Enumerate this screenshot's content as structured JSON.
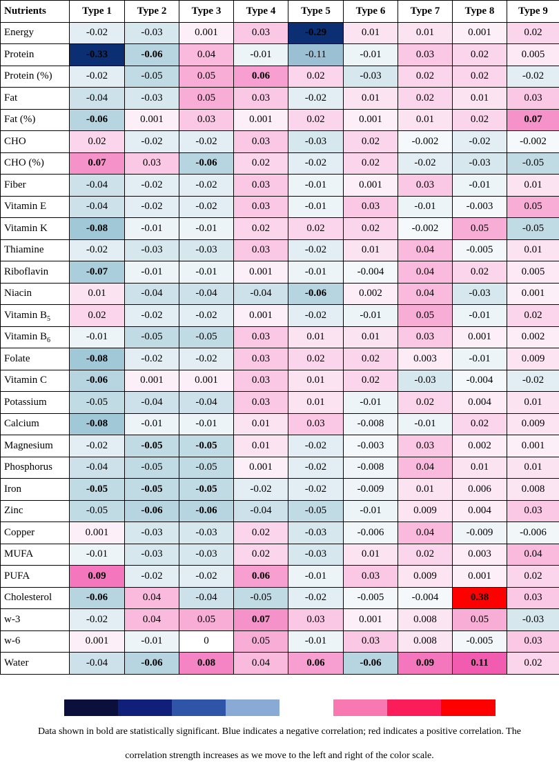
{
  "chart_data": {
    "type": "heatmap",
    "corner_label": "Nutrients",
    "columns": [
      "Type 1",
      "Type 2",
      "Type 3",
      "Type 4",
      "Type 5",
      "Type 6",
      "Type 7",
      "Type 8",
      "Type 9"
    ],
    "rows": [
      {
        "label": "Energy",
        "base": "",
        "sub": "",
        "values": [
          "-0.02",
          "-0.03",
          "0.001",
          "0.03",
          "-0.29",
          "0.01",
          "0.01",
          "0.001",
          "0.02"
        ],
        "bold": [
          0,
          0,
          0,
          0,
          1,
          0,
          0,
          0,
          0
        ]
      },
      {
        "label": "Protein",
        "base": "",
        "sub": "",
        "values": [
          "-0.33",
          "-0.06",
          "0.04",
          "-0.01",
          "-0.11",
          "-0.01",
          "0.03",
          "0.02",
          "0.005"
        ],
        "bold": [
          1,
          1,
          0,
          0,
          0,
          0,
          0,
          0,
          0
        ]
      },
      {
        "label": "Protein (%)",
        "base": "",
        "sub": "",
        "values": [
          "-0.02",
          "-0.05",
          "0.05",
          "0.06",
          "0.02",
          "-0.03",
          "0.02",
          "0.02",
          "-0.02"
        ],
        "bold": [
          0,
          0,
          0,
          1,
          0,
          0,
          0,
          0,
          0
        ]
      },
      {
        "label": "Fat",
        "base": "",
        "sub": "",
        "values": [
          "-0.04",
          "-0.03",
          "0.05",
          "0.03",
          "-0.02",
          "0.01",
          "0.02",
          "0.01",
          "0.03"
        ],
        "bold": [
          0,
          0,
          0,
          0,
          0,
          0,
          0,
          0,
          0
        ]
      },
      {
        "label": "Fat (%)",
        "base": "",
        "sub": "",
        "values": [
          "-0.06",
          "0.001",
          "0.03",
          "0.001",
          "0.02",
          "0.001",
          "0.01",
          "0.02",
          "0.07"
        ],
        "bold": [
          1,
          0,
          0,
          0,
          0,
          0,
          0,
          0,
          1
        ]
      },
      {
        "label": "CHO",
        "base": "",
        "sub": "",
        "values": [
          "0.02",
          "-0.02",
          "-0.02",
          "0.03",
          "-0.03",
          "0.02",
          "-0.002",
          "-0.02",
          "-0.002"
        ],
        "bold": [
          0,
          0,
          0,
          0,
          0,
          0,
          0,
          0,
          0
        ]
      },
      {
        "label": "CHO (%)",
        "base": "",
        "sub": "",
        "values": [
          "0.07",
          "0.03",
          "-0.06",
          "0.02",
          "-0.02",
          "0.02",
          "-0.02",
          "-0.03",
          "-0.05"
        ],
        "bold": [
          1,
          0,
          1,
          0,
          0,
          0,
          0,
          0,
          0
        ]
      },
      {
        "label": "Fiber",
        "base": "",
        "sub": "",
        "values": [
          "-0.04",
          "-0.02",
          "-0.02",
          "0.03",
          "-0.01",
          "0.001",
          "0.03",
          "-0.01",
          "0.01"
        ],
        "bold": [
          0,
          0,
          0,
          0,
          0,
          0,
          0,
          0,
          0
        ]
      },
      {
        "label": "Vitamin E",
        "base": "",
        "sub": "",
        "values": [
          "-0.04",
          "-0.02",
          "-0.02",
          "0.03",
          "-0.01",
          "0.03",
          "-0.01",
          "-0.003",
          "0.05"
        ],
        "bold": [
          0,
          0,
          0,
          0,
          0,
          0,
          0,
          0,
          0
        ]
      },
      {
        "label": "Vitamin K",
        "base": "",
        "sub": "",
        "values": [
          "-0.08",
          "-0.01",
          "-0.01",
          "0.02",
          "0.02",
          "0.02",
          "-0.002",
          "0.05",
          "-0.05"
        ],
        "bold": [
          1,
          0,
          0,
          0,
          0,
          0,
          0,
          0,
          0
        ]
      },
      {
        "label": "Thiamine",
        "base": "",
        "sub": "",
        "values": [
          "-0.02",
          "-0.03",
          "-0.03",
          "0.03",
          "-0.02",
          "0.01",
          "0.04",
          "-0.005",
          "0.01"
        ],
        "bold": [
          0,
          0,
          0,
          0,
          0,
          0,
          0,
          0,
          0
        ]
      },
      {
        "label": "Riboflavin",
        "base": "",
        "sub": "",
        "values": [
          "-0.07",
          "-0.01",
          "-0.01",
          "0.001",
          "-0.01",
          "-0.004",
          "0.04",
          "0.02",
          "0.005"
        ],
        "bold": [
          1,
          0,
          0,
          0,
          0,
          0,
          0,
          0,
          0
        ]
      },
      {
        "label": "Niacin",
        "base": "",
        "sub": "",
        "values": [
          "0.01",
          "-0.04",
          "-0.04",
          "-0.04",
          "-0.06",
          "0.002",
          "0.04",
          "-0.03",
          "0.001"
        ],
        "bold": [
          0,
          0,
          0,
          0,
          1,
          0,
          0,
          0,
          0
        ]
      },
      {
        "label": "Vitamin B5",
        "base": "Vitamin B",
        "sub": "5",
        "values": [
          "0.02",
          "-0.02",
          "-0.02",
          "0.001",
          "-0.02",
          "-0.01",
          "0.05",
          "-0.01",
          "0.02"
        ],
        "bold": [
          0,
          0,
          0,
          0,
          0,
          0,
          0,
          0,
          0
        ]
      },
      {
        "label": "Vitamin B6",
        "base": "Vitamin B",
        "sub": "6",
        "values": [
          "-0.01",
          "-0.05",
          "-0.05",
          "0.03",
          "0.01",
          "0.01",
          "0.03",
          "0.001",
          "0.002"
        ],
        "bold": [
          0,
          0,
          0,
          0,
          0,
          0,
          0,
          0,
          0
        ]
      },
      {
        "label": "Folate",
        "base": "",
        "sub": "",
        "values": [
          "-0.08",
          "-0.02",
          "-0.02",
          "0.03",
          "0.02",
          "0.02",
          "0.003",
          "-0.01",
          "0.009"
        ],
        "bold": [
          1,
          0,
          0,
          0,
          0,
          0,
          0,
          0,
          0
        ]
      },
      {
        "label": "Vitamin C",
        "base": "",
        "sub": "",
        "values": [
          "-0.06",
          "0.001",
          "0.001",
          "0.03",
          "0.01",
          "0.02",
          "-0.03",
          "-0.004",
          "-0.02"
        ],
        "bold": [
          1,
          0,
          0,
          0,
          0,
          0,
          0,
          0,
          0
        ]
      },
      {
        "label": "Potassium",
        "base": "",
        "sub": "",
        "values": [
          "-0.05",
          "-0.04",
          "-0.04",
          "0.03",
          "0.01",
          "-0.01",
          "0.02",
          "0.004",
          "0.01"
        ],
        "bold": [
          0,
          0,
          0,
          0,
          0,
          0,
          0,
          0,
          0
        ]
      },
      {
        "label": "Calcium",
        "base": "",
        "sub": "",
        "values": [
          "-0.08",
          "-0.01",
          "-0.01",
          "0.01",
          "0.03",
          "-0.008",
          "-0.01",
          "0.02",
          "0.009"
        ],
        "bold": [
          1,
          0,
          0,
          0,
          0,
          0,
          0,
          0,
          0
        ]
      },
      {
        "label": "Magnesium",
        "base": "",
        "sub": "",
        "values": [
          "-0.02",
          "-0.05",
          "-0.05",
          "0.01",
          "-0.02",
          "-0.003",
          "0.03",
          "0.002",
          "0.001"
        ],
        "bold": [
          0,
          1,
          1,
          0,
          0,
          0,
          0,
          0,
          0
        ]
      },
      {
        "label": "Phosphorus",
        "base": "",
        "sub": "",
        "values": [
          "-0.04",
          "-0.05",
          "-0.05",
          "0.001",
          "-0.02",
          "-0.008",
          "0.04",
          "0.01",
          "0.01"
        ],
        "bold": [
          0,
          0,
          0,
          0,
          0,
          0,
          0,
          0,
          0
        ]
      },
      {
        "label": "Iron",
        "base": "",
        "sub": "",
        "values": [
          "-0.05",
          "-0.05",
          "-0.05",
          "-0.02",
          "-0.02",
          "-0.009",
          "0.01",
          "0.006",
          "0.008"
        ],
        "bold": [
          1,
          1,
          1,
          0,
          0,
          0,
          0,
          0,
          0
        ]
      },
      {
        "label": "Zinc",
        "base": "",
        "sub": "",
        "values": [
          "-0.05",
          "-0.06",
          "-0.06",
          "-0.04",
          "-0.05",
          "-0.01",
          "0.009",
          "0.004",
          "0.03"
        ],
        "bold": [
          0,
          1,
          1,
          0,
          0,
          0,
          0,
          0,
          0
        ]
      },
      {
        "label": "Copper",
        "base": "",
        "sub": "",
        "values": [
          "0.001",
          "-0.03",
          "-0.03",
          "0.02",
          "-0.03",
          "-0.006",
          "0.04",
          "-0.009",
          "-0.006"
        ],
        "bold": [
          0,
          0,
          0,
          0,
          0,
          0,
          0,
          0,
          0
        ]
      },
      {
        "label": "MUFA",
        "base": "",
        "sub": "",
        "values": [
          "-0.01",
          "-0.03",
          "-0.03",
          "0.02",
          "-0.03",
          "0.01",
          "0.02",
          "0.003",
          "0.04"
        ],
        "bold": [
          0,
          0,
          0,
          0,
          0,
          0,
          0,
          0,
          0
        ]
      },
      {
        "label": "PUFA",
        "base": "",
        "sub": "",
        "values": [
          "0.09",
          "-0.02",
          "-0.02",
          "0.06",
          "-0.01",
          "0.03",
          "0.009",
          "0.001",
          "0.02"
        ],
        "bold": [
          1,
          0,
          0,
          1,
          0,
          0,
          0,
          0,
          0
        ]
      },
      {
        "label": "Cholesterol",
        "base": "",
        "sub": "",
        "values": [
          "-0.06",
          "0.04",
          "-0.04",
          "-0.05",
          "-0.02",
          "-0.005",
          "-0.004",
          "0.38",
          "0.03"
        ],
        "bold": [
          1,
          0,
          0,
          0,
          0,
          0,
          0,
          1,
          0
        ]
      },
      {
        "label": "w-3",
        "base": "",
        "sub": "",
        "values": [
          "-0.02",
          "0.04",
          "0.05",
          "0.07",
          "0.03",
          "0.001",
          "0.008",
          "0.05",
          "-0.03"
        ],
        "bold": [
          0,
          0,
          0,
          1,
          0,
          0,
          0,
          0,
          0
        ]
      },
      {
        "label": "w-6",
        "base": "",
        "sub": "",
        "values": [
          "0.001",
          "-0.01",
          "0",
          "0.05",
          "-0.01",
          "0.03",
          "0.008",
          "-0.005",
          "0.03"
        ],
        "bold": [
          0,
          0,
          0,
          0,
          0,
          0,
          0,
          0,
          0
        ]
      },
      {
        "label": "Water",
        "base": "",
        "sub": "",
        "values": [
          "-0.04",
          "-0.06",
          "0.08",
          "0.04",
          "0.06",
          "-0.06",
          "0.09",
          "0.11",
          "0.02"
        ],
        "bold": [
          0,
          1,
          1,
          0,
          1,
          1,
          1,
          1,
          0
        ]
      }
    ],
    "color_scale": [
      "#0a0f3c",
      "#0f1f7a",
      "#2f55a8",
      "#8aaad6",
      "#ffffff",
      "#f878b2",
      "#fb1d5a",
      "#ff0000"
    ],
    "caption_line1": "Data shown in bold are statistically significant. Blue indicates a negative correlation; red indicates a positive correlation. The",
    "caption_line2": "correlation strength increases as we move to the left and right of the color scale."
  }
}
